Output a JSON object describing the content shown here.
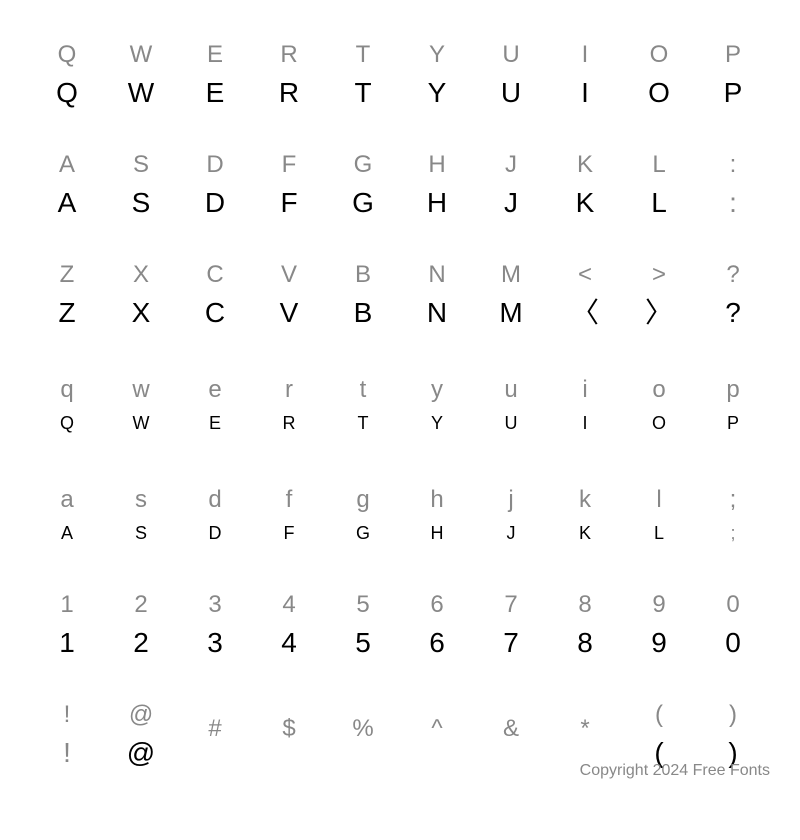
{
  "grid": {
    "columns": 10,
    "rows": 7,
    "background_color": "#ffffff",
    "ref_color": "#888888",
    "display_color": "#000000",
    "ref_fontsize": 24,
    "display_fontsize": 28,
    "display_fontsize_small": 18,
    "pairs": [
      {
        "ref": "Q",
        "display": "Q",
        "small": false
      },
      {
        "ref": "W",
        "display": "W",
        "small": false
      },
      {
        "ref": "E",
        "display": "E",
        "small": false
      },
      {
        "ref": "R",
        "display": "R",
        "small": false
      },
      {
        "ref": "T",
        "display": "T",
        "small": false
      },
      {
        "ref": "Y",
        "display": "Y",
        "small": false
      },
      {
        "ref": "U",
        "display": "U",
        "small": false
      },
      {
        "ref": "I",
        "display": "I",
        "small": false
      },
      {
        "ref": "O",
        "display": "O",
        "small": false
      },
      {
        "ref": "P",
        "display": "P",
        "small": false
      },
      {
        "ref": "A",
        "display": "A",
        "small": false
      },
      {
        "ref": "S",
        "display": "S",
        "small": false
      },
      {
        "ref": "D",
        "display": "D",
        "small": false
      },
      {
        "ref": "F",
        "display": "F",
        "small": false
      },
      {
        "ref": "G",
        "display": "G",
        "small": false
      },
      {
        "ref": "H",
        "display": "H",
        "small": false
      },
      {
        "ref": "J",
        "display": "J",
        "small": false
      },
      {
        "ref": "K",
        "display": "K",
        "small": false
      },
      {
        "ref": "L",
        "display": "L",
        "small": false
      },
      {
        "ref": ":",
        "display": ":",
        "small": false,
        "faint": true
      },
      {
        "ref": "Z",
        "display": "Z",
        "small": false
      },
      {
        "ref": "X",
        "display": "X",
        "small": false
      },
      {
        "ref": "C",
        "display": "C",
        "small": false
      },
      {
        "ref": "V",
        "display": "V",
        "small": false
      },
      {
        "ref": "B",
        "display": "B",
        "small": false
      },
      {
        "ref": "N",
        "display": "N",
        "small": false
      },
      {
        "ref": "M",
        "display": "M",
        "small": false
      },
      {
        "ref": "<",
        "display": "〈",
        "small": false
      },
      {
        "ref": ">",
        "display": "〉",
        "small": false
      },
      {
        "ref": "?",
        "display": "?",
        "small": false
      },
      {
        "ref": "q",
        "display": "Q",
        "small": true
      },
      {
        "ref": "w",
        "display": "W",
        "small": true
      },
      {
        "ref": "e",
        "display": "E",
        "small": true
      },
      {
        "ref": "r",
        "display": "R",
        "small": true
      },
      {
        "ref": "t",
        "display": "T",
        "small": true
      },
      {
        "ref": "y",
        "display": "Y",
        "small": true
      },
      {
        "ref": "u",
        "display": "U",
        "small": true
      },
      {
        "ref": "i",
        "display": "I",
        "small": true
      },
      {
        "ref": "o",
        "display": "O",
        "small": true
      },
      {
        "ref": "p",
        "display": "P",
        "small": true
      },
      {
        "ref": "a",
        "display": "A",
        "small": true
      },
      {
        "ref": "s",
        "display": "S",
        "small": true
      },
      {
        "ref": "d",
        "display": "D",
        "small": true
      },
      {
        "ref": "f",
        "display": "F",
        "small": true
      },
      {
        "ref": "g",
        "display": "G",
        "small": true
      },
      {
        "ref": "h",
        "display": "H",
        "small": true
      },
      {
        "ref": "j",
        "display": "J",
        "small": true
      },
      {
        "ref": "k",
        "display": "K",
        "small": true
      },
      {
        "ref": "l",
        "display": "L",
        "small": true
      },
      {
        "ref": ";",
        "display": ";",
        "small": true,
        "faint": true
      },
      {
        "ref": "1",
        "display": "1",
        "small": false
      },
      {
        "ref": "2",
        "display": "2",
        "small": false
      },
      {
        "ref": "3",
        "display": "3",
        "small": false
      },
      {
        "ref": "4",
        "display": "4",
        "small": false
      },
      {
        "ref": "5",
        "display": "5",
        "small": false
      },
      {
        "ref": "6",
        "display": "6",
        "small": false
      },
      {
        "ref": "7",
        "display": "7",
        "small": false
      },
      {
        "ref": "8",
        "display": "8",
        "small": false
      },
      {
        "ref": "9",
        "display": "9",
        "small": false
      },
      {
        "ref": "0",
        "display": "0",
        "small": false
      },
      {
        "ref": "!",
        "display": "!",
        "small": false,
        "faint": true
      },
      {
        "ref": "@",
        "display": "@",
        "small": false
      },
      {
        "ref": "#",
        "display": "",
        "small": false
      },
      {
        "ref": "$",
        "display": "",
        "small": false
      },
      {
        "ref": "%",
        "display": "",
        "small": false
      },
      {
        "ref": "^",
        "display": "",
        "small": false
      },
      {
        "ref": "&",
        "display": "",
        "small": false
      },
      {
        "ref": "*",
        "display": "",
        "small": false
      },
      {
        "ref": "(",
        "display": "(",
        "small": false
      },
      {
        "ref": ")",
        "display": ")",
        "small": false
      }
    ]
  },
  "copyright": "Copyright 2024 Free Fonts"
}
